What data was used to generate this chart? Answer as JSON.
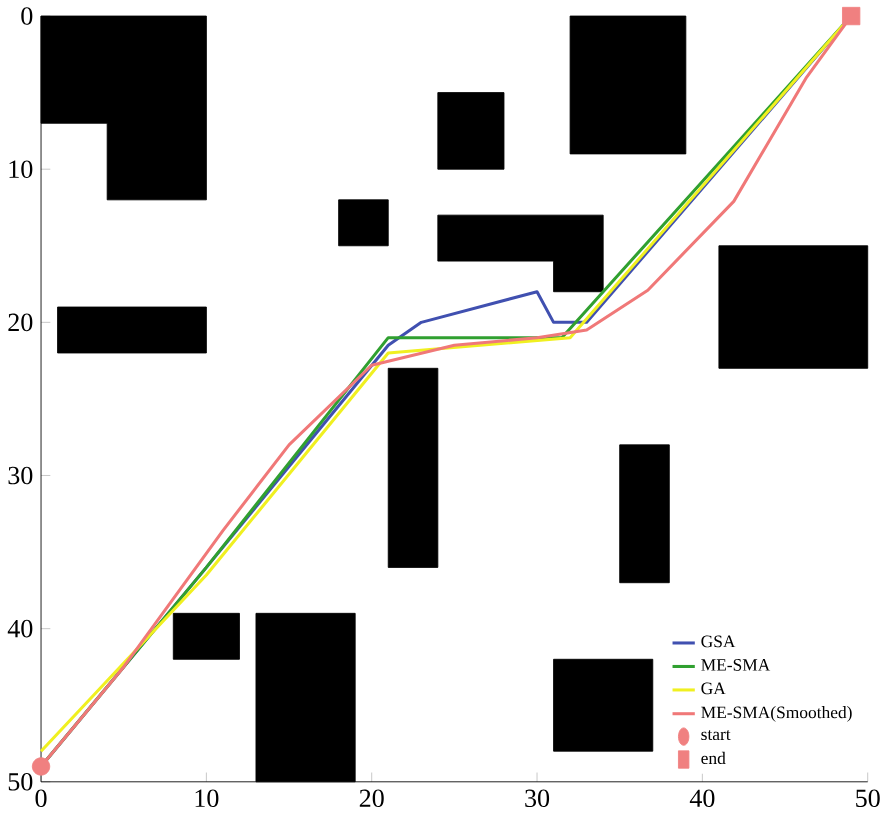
{
  "chart_data": {
    "type": "line",
    "xlim": [
      0,
      50
    ],
    "ylim": [
      50,
      0
    ],
    "xticks": [
      0,
      10,
      20,
      30,
      40,
      50
    ],
    "yticks": [
      0,
      10,
      20,
      30,
      40,
      50
    ],
    "grid": false,
    "legend": "bottom right",
    "series": [
      {
        "type": "area",
        "color": "#000000",
        "x": [
          0,
          10,
          10,
          4,
          4,
          0
        ],
        "values": [
          0,
          0,
          12,
          12,
          7,
          7
        ]
      },
      {
        "type": "area",
        "color": "#000000",
        "x": [
          18,
          21,
          21,
          18
        ],
        "values": [
          12,
          12,
          15,
          15
        ]
      },
      {
        "type": "area",
        "color": "#000000",
        "x": [
          24,
          28,
          28,
          24
        ],
        "values": [
          5,
          5,
          10,
          10
        ]
      },
      {
        "type": "area",
        "color": "#000000",
        "x": [
          32,
          39,
          39,
          32
        ],
        "values": [
          0,
          0,
          9,
          9
        ]
      },
      {
        "type": "area",
        "color": "#000000",
        "x": [
          24,
          34,
          34,
          31,
          31,
          24
        ],
        "values": [
          13,
          13,
          18,
          18,
          16,
          16
        ]
      },
      {
        "type": "area",
        "color": "#000000",
        "x": [
          41,
          50,
          50,
          41
        ],
        "values": [
          15,
          15,
          23,
          23
        ]
      },
      {
        "type": "area",
        "color": "#000000",
        "x": [
          1,
          10,
          10,
          1
        ],
        "values": [
          19,
          19,
          22,
          22
        ]
      },
      {
        "type": "area",
        "color": "#000000",
        "x": [
          21,
          24,
          24,
          21
        ],
        "values": [
          23,
          23,
          36,
          36
        ]
      },
      {
        "type": "area",
        "color": "#000000",
        "x": [
          35,
          38,
          38,
          35
        ],
        "values": [
          28,
          28,
          37,
          37
        ]
      },
      {
        "type": "area",
        "color": "#000000",
        "x": [
          8,
          12,
          12,
          8
        ],
        "values": [
          39,
          39,
          42,
          42
        ]
      },
      {
        "type": "area",
        "color": "#000000",
        "x": [
          13,
          19,
          19,
          13
        ],
        "values": [
          39,
          39,
          50,
          50
        ]
      },
      {
        "type": "area",
        "color": "#000000",
        "x": [
          31,
          37,
          37,
          31
        ],
        "values": [
          42,
          42,
          48,
          48
        ]
      },
      {
        "name": "GSA",
        "color": "#4050b0",
        "x": [
          0,
          10,
          21,
          23,
          30,
          31,
          33,
          49
        ],
        "values": [
          49,
          36,
          21.5,
          20,
          18,
          20,
          20,
          0
        ]
      },
      {
        "name": "ME-SMA",
        "color": "#30a030",
        "x": [
          0,
          10,
          21,
          22,
          31.5,
          49
        ],
        "values": [
          49,
          36,
          21,
          21,
          21,
          0
        ]
      },
      {
        "name": "GA",
        "color": "#f0f020",
        "x": [
          0,
          10,
          21,
          32,
          49
        ],
        "values": [
          48,
          36.5,
          22,
          21,
          0
        ]
      },
      {
        "name": "ME-SMA(Smoothed)",
        "color": "#f07878",
        "x": [
          0,
          5,
          11,
          15,
          20,
          25,
          30,
          33,
          36.7,
          41.9,
          46.3,
          49
        ],
        "values": [
          49,
          42.5,
          33.6,
          28,
          22.8,
          21.5,
          21,
          20.5,
          17.9,
          12.1,
          4,
          0
        ]
      },
      {
        "name": "start",
        "type": "scatter",
        "marker": "circle",
        "color": "#f08080",
        "x": [
          0
        ],
        "values": [
          49
        ]
      },
      {
        "name": "end",
        "type": "scatter",
        "marker": "square",
        "color": "#f08080",
        "x": [
          49
        ],
        "values": [
          0
        ]
      }
    ]
  }
}
